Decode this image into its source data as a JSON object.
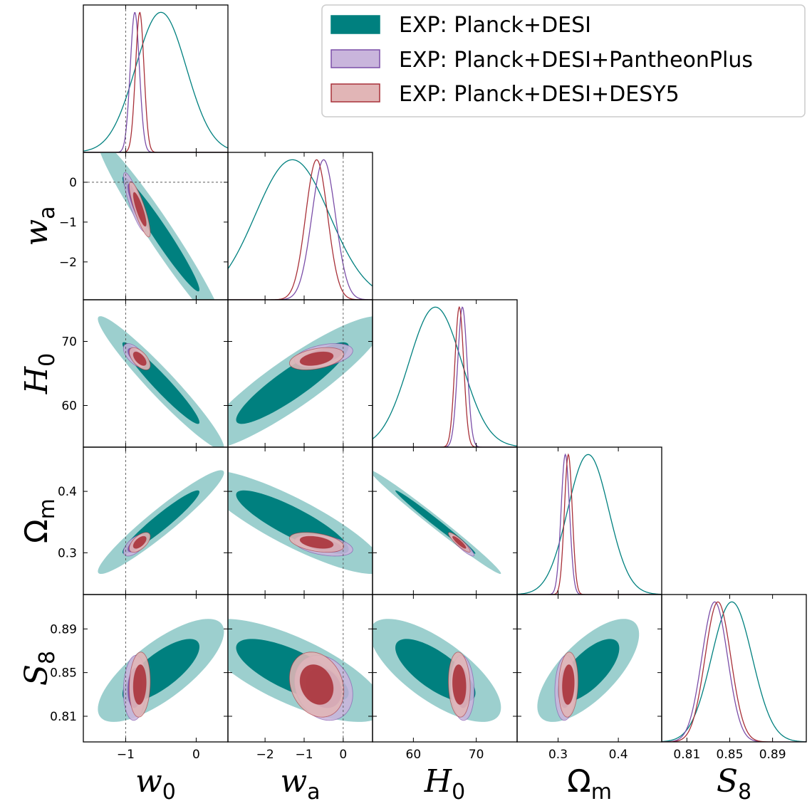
{
  "chart_data": {
    "type": "triangle-corner-plot",
    "parameters": [
      {
        "key": "w0",
        "symbol": "w",
        "sub": "0",
        "italic": true,
        "range": [
          -1.6,
          0.45
        ],
        "ticks": [
          -1,
          0
        ],
        "tick_labels": [
          "−1",
          "0"
        ],
        "ref": -1
      },
      {
        "key": "wa",
        "symbol": "w",
        "sub": "a",
        "italic": true,
        "range": [
          -2.95,
          0.75
        ],
        "ticks": [
          -2,
          -1,
          0
        ],
        "tick_labels": [
          "−2",
          "−1",
          "0"
        ],
        "ref": 0
      },
      {
        "key": "H0",
        "symbol": "H",
        "sub": "0",
        "italic": true,
        "range": [
          53.5,
          76.5
        ],
        "ticks": [
          60,
          70
        ],
        "tick_labels": [
          "60",
          "70"
        ],
        "ref": null
      },
      {
        "key": "Om",
        "symbol": "Ω",
        "sub": "m",
        "italic": false,
        "range": [
          0.232,
          0.472
        ],
        "ticks": [
          0.3,
          0.4
        ],
        "tick_labels": [
          "0.3",
          "0.4"
        ],
        "ref": null
      },
      {
        "key": "S8",
        "symbol": "S",
        "sub": "8",
        "italic": true,
        "range": [
          0.7865,
          0.9215
        ],
        "ticks": [
          0.81,
          0.85,
          0.89
        ],
        "tick_labels": [
          "0.81",
          "0.85",
          "0.89"
        ],
        "ref": null
      }
    ],
    "series": [
      {
        "name": "EXP: Planck+DESI",
        "color": "#00807f",
        "light": "#9ccfce",
        "mean": [
          -0.5,
          -1.3,
          63.5,
          0.35,
          0.852
        ],
        "sd": [
          0.36,
          0.95,
          4.2,
          0.034,
          0.019
        ],
        "corr": [
          [
            1,
            -0.97,
            -0.96,
            0.95,
            0.75
          ],
          [
            -0.97,
            1,
            0.9,
            -0.86,
            -0.72
          ],
          [
            -0.96,
            0.9,
            1,
            -0.99,
            -0.72
          ],
          [
            0.95,
            -0.86,
            -0.99,
            1,
            0.7
          ],
          [
            0.75,
            -0.72,
            -0.72,
            0.7,
            1
          ]
        ]
      },
      {
        "name": "EXP: Planck+DESI+PantheonPlus",
        "color": "#7b4ea8",
        "light": "#c9b5dc",
        "mean": [
          -0.87,
          -0.5,
          67.8,
          0.312,
          0.836
        ],
        "sd": [
          0.065,
          0.3,
          0.75,
          0.007,
          0.012
        ],
        "corr": [
          [
            1,
            -0.85,
            -0.6,
            0.6,
            0.1
          ],
          [
            -0.85,
            1,
            0.4,
            -0.4,
            -0.2
          ],
          [
            -0.6,
            0.4,
            1,
            -0.9,
            -0.1
          ],
          [
            0.6,
            -0.4,
            -0.9,
            1,
            0.1
          ],
          [
            0.1,
            -0.2,
            -0.1,
            0.1,
            1
          ]
        ]
      },
      {
        "name": "EXP: Planck+DESI+DESY5",
        "color": "#a83038",
        "light": "#e1b5b6",
        "mean": [
          -0.8,
          -0.68,
          67.3,
          0.317,
          0.839
        ],
        "sd": [
          0.06,
          0.28,
          0.7,
          0.0065,
          0.012
        ],
        "corr": [
          [
            1,
            -0.85,
            -0.6,
            0.6,
            0.1
          ],
          [
            -0.85,
            1,
            0.4,
            -0.4,
            -0.2
          ],
          [
            -0.6,
            0.4,
            1,
            -0.9,
            -0.1
          ],
          [
            0.6,
            -0.4,
            -0.9,
            1,
            0.1
          ],
          [
            0.1,
            -0.2,
            -0.1,
            0.1,
            1
          ]
        ]
      }
    ],
    "legend_position": "top-right"
  }
}
